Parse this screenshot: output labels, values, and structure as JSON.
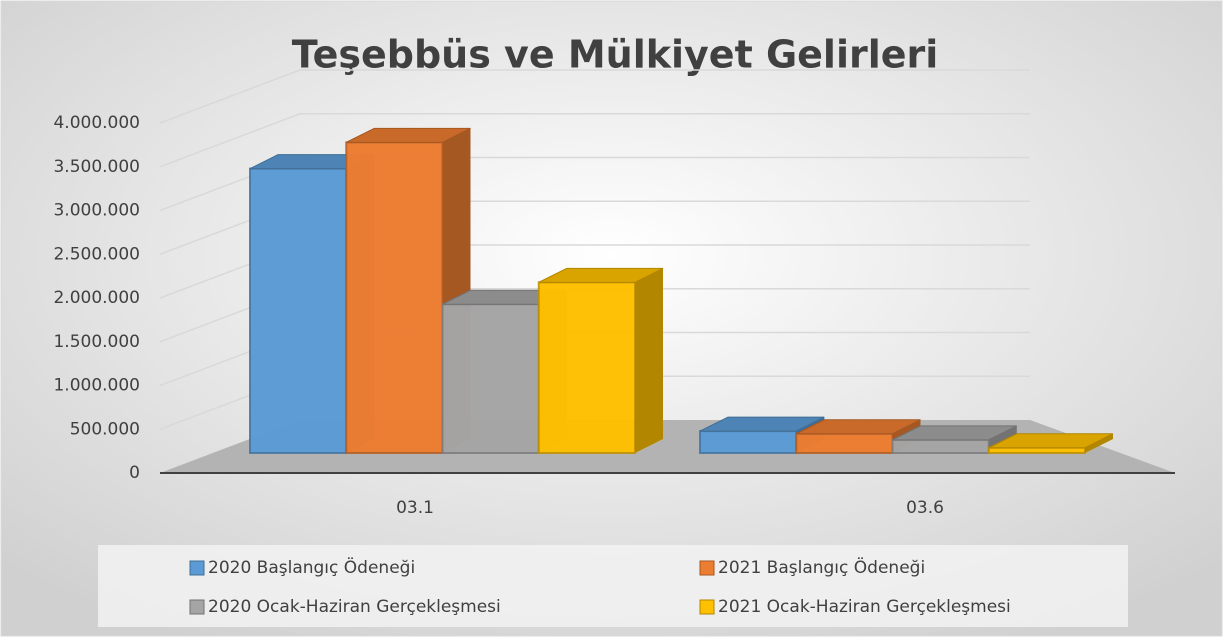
{
  "chart_data": {
    "type": "bar3d",
    "title": "Teşebbüs ve Mülkiyet Gelirleri",
    "categories": [
      "03.1",
      "03.6"
    ],
    "series": [
      {
        "name": "2020 Başlangıç Ödeneği",
        "color": "#5b9bd5",
        "values": [
          3250000,
          250000
        ]
      },
      {
        "name": "2021 Başlangıç Ödeneği",
        "color": "#ed7d31",
        "values": [
          3550000,
          220000
        ]
      },
      {
        "name": "2020 Ocak-Haziran Gerçekleşmesi",
        "color": "#a5a5a5",
        "values": [
          1700000,
          150000
        ]
      },
      {
        "name": "2021 Ocak-Haziran Gerçekleşmesi",
        "color": "#ffc000",
        "values": [
          1950000,
          60000
        ]
      }
    ],
    "ylim": [
      0,
      4000000
    ],
    "yticks": [
      0,
      {
        "value": 500000,
        "label": "500.000"
      },
      {
        "value": 1000000,
        "label": "1.000.000"
      },
      {
        "value": 1500000,
        "label": "1.500.000"
      },
      {
        "value": 2000000,
        "label": "2.000.000"
      },
      {
        "value": 2500000,
        "label": "2.500.000"
      },
      {
        "value": 3000000,
        "label": "3.000.000"
      },
      {
        "value": 3500000,
        "label": "3.500.000"
      },
      {
        "value": 4000000,
        "label": "4.000.000"
      }
    ],
    "grid": true,
    "legend": "bottom"
  }
}
